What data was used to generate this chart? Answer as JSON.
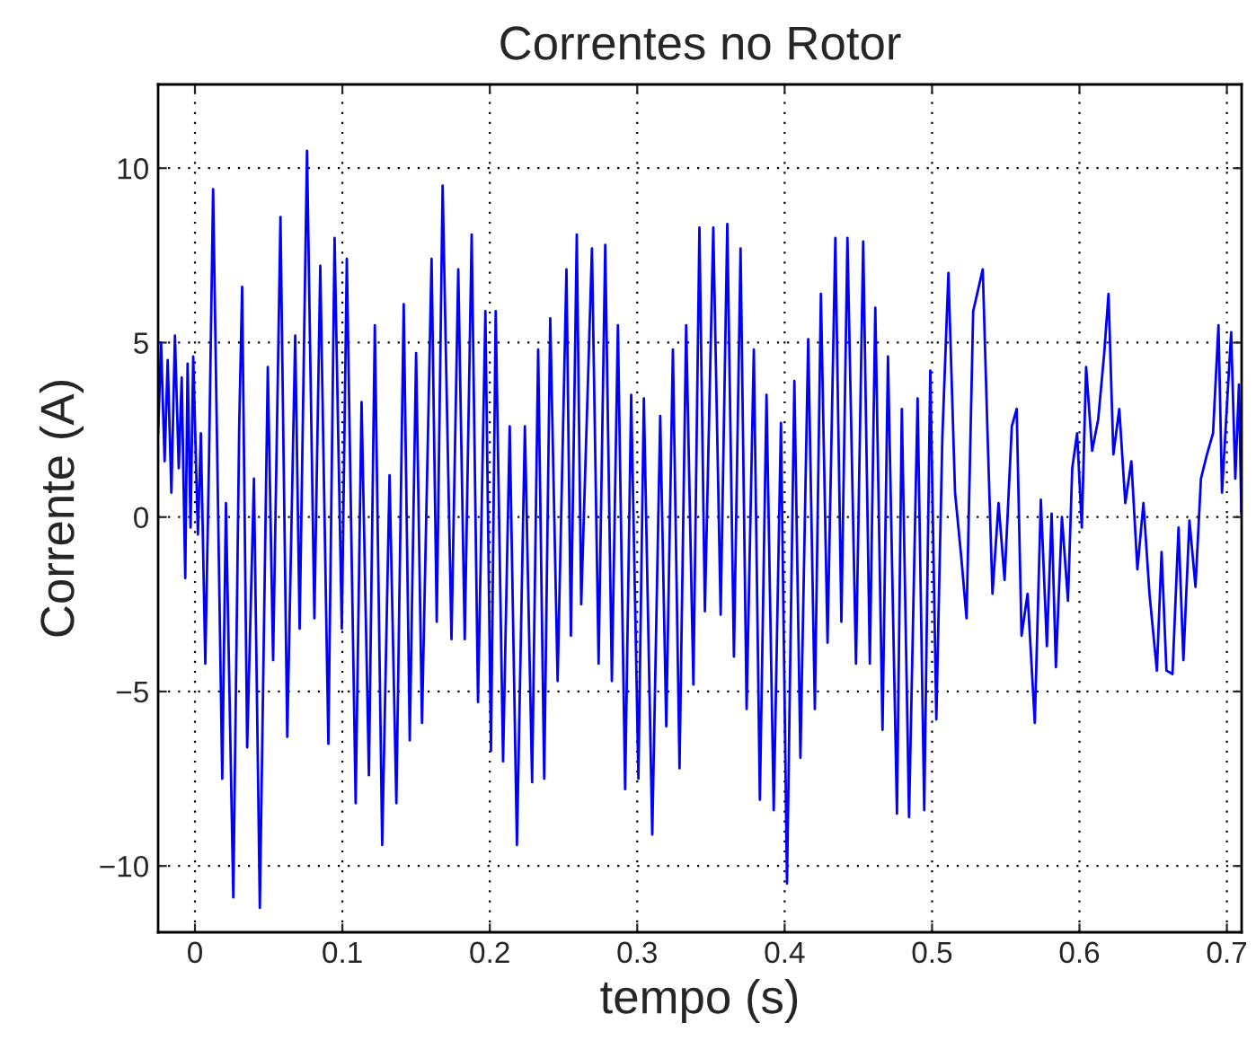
{
  "chart_data": {
    "type": "line",
    "title": "Correntes no Rotor",
    "xlabel": "tempo (s)",
    "ylabel": "Corrente (A)",
    "xlim": [
      -0.025,
      0.71
    ],
    "ylim": [
      -11.9,
      12.4
    ],
    "xticks": [
      0,
      0.1,
      0.2,
      0.3,
      0.4,
      0.5,
      0.6,
      0.7
    ],
    "yticks": [
      -10,
      -5,
      0,
      5,
      10
    ],
    "grid": true,
    "line_style": "solid",
    "series": [
      {
        "color": "#0000ff",
        "x": [
          -0.025,
          -0.023,
          -0.0206,
          -0.0185,
          -0.016,
          -0.0136,
          -0.011,
          -0.009,
          -0.0066,
          -0.005,
          -0.003,
          -0.0012,
          0.002,
          0.004,
          0.007,
          0.0095,
          0.0123,
          0.0185,
          0.021,
          0.026,
          0.03,
          0.032,
          0.0354,
          0.04,
          0.044,
          0.0494,
          0.053,
          0.058,
          0.0626,
          0.068,
          0.071,
          0.076,
          0.081,
          0.085,
          0.0905,
          0.0947,
          0.0996,
          0.103,
          0.109,
          0.113,
          0.118,
          0.122,
          0.127,
          0.132,
          0.1366,
          0.1416,
          0.1457,
          0.15,
          0.154,
          0.1605,
          0.164,
          0.168,
          0.174,
          0.1786,
          0.183,
          0.1877,
          0.192,
          0.197,
          0.2008,
          0.204,
          0.209,
          0.2135,
          0.2184,
          0.2238,
          0.2287,
          0.2328,
          0.2369,
          0.241,
          0.246,
          0.252,
          0.255,
          0.259,
          0.262,
          0.2693,
          0.2738,
          0.2783,
          0.2828,
          0.2869,
          0.2918,
          0.2959,
          0.3008,
          0.3045,
          0.3102,
          0.3156,
          0.3197,
          0.3242,
          0.3287,
          0.3332,
          0.3381,
          0.3422,
          0.3459,
          0.3516,
          0.3566,
          0.3611,
          0.3656,
          0.3701,
          0.3742,
          0.3791,
          0.3832,
          0.3877,
          0.3926,
          0.3975,
          0.4016,
          0.4066,
          0.4107,
          0.416,
          0.4205,
          0.4246,
          0.4291,
          0.4344,
          0.4385,
          0.4426,
          0.4484,
          0.4533,
          0.4578,
          0.4615,
          0.4664,
          0.4701,
          0.4762,
          0.4795,
          0.4844,
          0.4902,
          0.4947,
          0.4988,
          0.5029,
          0.507,
          0.5111,
          0.5156,
          0.5197,
          0.5234,
          0.5279,
          0.5344,
          0.5377,
          0.541,
          0.5451,
          0.5492,
          0.5541,
          0.5574,
          0.5607,
          0.5648,
          0.5697,
          0.5738,
          0.5779,
          0.5811,
          0.584,
          0.5881,
          0.5922,
          0.5951,
          0.5984,
          0.6016,
          0.6045,
          0.6086,
          0.6127,
          0.6168,
          0.6197,
          0.623,
          0.627,
          0.6311,
          0.6352,
          0.6393,
          0.6434,
          0.6475,
          0.6525,
          0.6557,
          0.659,
          0.6631,
          0.6672,
          0.6705,
          0.6746,
          0.6787,
          0.6824,
          0.6865,
          0.6906,
          0.6943,
          0.6967,
          0.6999,
          0.7029,
          0.7057,
          0.7082,
          0.7098
        ],
        "values": [
          2.4,
          5.0,
          1.6,
          4.5,
          0.7,
          5.2,
          1.4,
          4.0,
          -1.75,
          4.4,
          -0.3,
          4.6,
          -0.5,
          2.4,
          -4.2,
          1.6,
          9.4,
          -7.5,
          0.4,
          -10.9,
          2.6,
          6.6,
          -6.6,
          1.1,
          -11.2,
          4.3,
          -4.1,
          8.6,
          -6.3,
          5.2,
          -3.2,
          10.5,
          -2.9,
          7.2,
          -6.5,
          8.0,
          -3.2,
          7.4,
          -8.2,
          3.3,
          -7.4,
          5.5,
          -9.4,
          1.2,
          -8.2,
          6.1,
          -6.4,
          4.7,
          -5.9,
          7.4,
          -3.0,
          9.5,
          -3.5,
          7.1,
          -3.5,
          8.1,
          -5.3,
          5.9,
          -6.7,
          5.9,
          -7.0,
          2.6,
          -9.4,
          2.6,
          -7.6,
          4.8,
          -7.5,
          5.7,
          -4.7,
          7.1,
          -3.4,
          8.1,
          -2.5,
          7.7,
          -4.2,
          7.8,
          -4.7,
          5.5,
          -7.8,
          3.5,
          -7.5,
          3.4,
          -9.1,
          2.9,
          -6.0,
          4.8,
          -7.2,
          5.5,
          -4.8,
          8.3,
          -2.7,
          8.3,
          -2.8,
          8.4,
          -4.0,
          7.7,
          -5.5,
          4.8,
          -8.1,
          3.5,
          -8.4,
          2.7,
          -10.5,
          3.9,
          -6.9,
          5.1,
          -5.5,
          6.4,
          -3.6,
          8.0,
          -3.0,
          8.0,
          -4.2,
          7.9,
          -4.2,
          6.0,
          -6.1,
          4.6,
          -8.5,
          3.1,
          -8.6,
          3.4,
          -8.4,
          4.2,
          -5.8,
          2.3,
          7.0,
          0.7,
          -1.1,
          -2.9,
          5.9,
          7.1,
          2.3,
          -2.2,
          0.4,
          -1.8,
          2.6,
          3.1,
          -3.4,
          -2.2,
          -5.9,
          0.5,
          -3.7,
          0.1,
          -4.3,
          0.0,
          -2.4,
          1.4,
          2.4,
          -0.3,
          4.3,
          1.9,
          2.8,
          4.7,
          6.4,
          1.8,
          3.1,
          0.4,
          1.6,
          -1.5,
          0.4,
          -2.2,
          -4.4,
          -1.0,
          -4.4,
          -4.5,
          -0.3,
          -4.1,
          -0.1,
          -2.0,
          1.1,
          1.8,
          2.4,
          5.5,
          0.7,
          3.1,
          5.3,
          1.1,
          3.8,
          0.1
        ]
      }
    ]
  }
}
